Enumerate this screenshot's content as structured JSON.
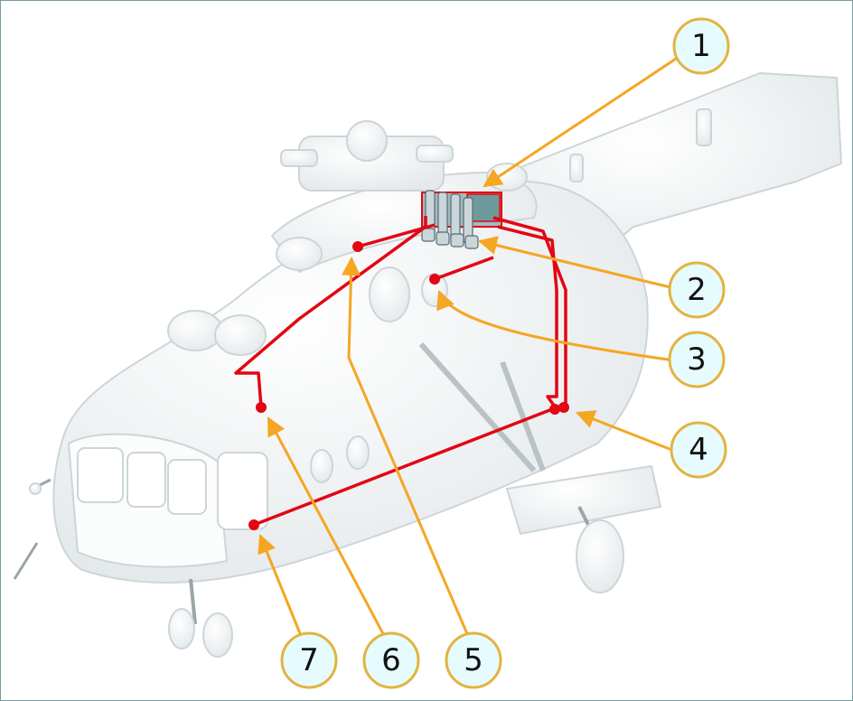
{
  "diagram": {
    "subject": "helicopter-fire-suppression-system",
    "colors": {
      "pipe": "#e30613",
      "leader": "#f5a623",
      "callout_fill": "#e6fbfd",
      "callout_stroke": "#e3b341",
      "frame": "#7a9aa0",
      "body_fill": "#f4f6f7",
      "body_stroke": "#cfd6d9"
    },
    "callouts": [
      {
        "id": "1",
        "label": "1"
      },
      {
        "id": "2",
        "label": "2"
      },
      {
        "id": "3",
        "label": "3"
      },
      {
        "id": "4",
        "label": "4"
      },
      {
        "id": "5",
        "label": "5"
      },
      {
        "id": "6",
        "label": "6"
      },
      {
        "id": "7",
        "label": "7"
      }
    ]
  }
}
